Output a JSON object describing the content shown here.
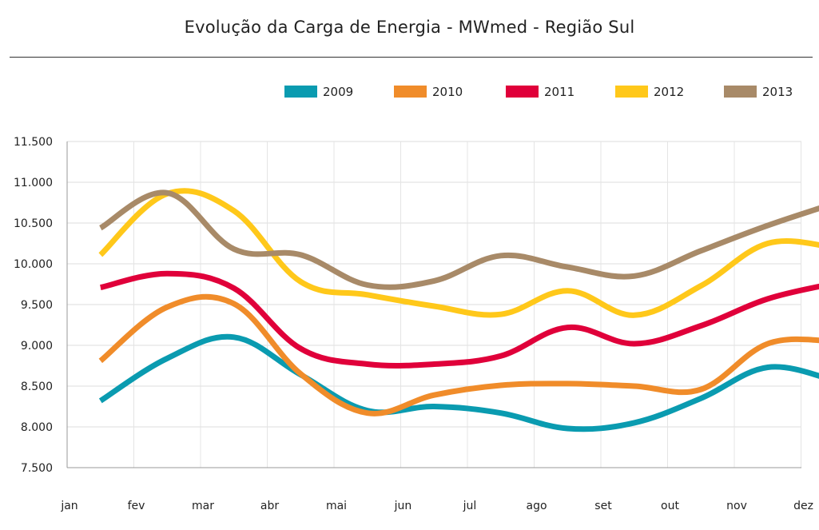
{
  "chart_data": {
    "type": "line",
    "title": "Evolução da Carga de Energia - MWmed - Região Sul",
    "xlabel": "",
    "ylabel": "",
    "categories": [
      "jan",
      "fev",
      "mar",
      "abr",
      "mai",
      "jun",
      "jul",
      "ago",
      "set",
      "out",
      "nov",
      "dez"
    ],
    "y_ticks": [
      "7.500",
      "8.000",
      "8.500",
      "9.000",
      "9.500",
      "10.000",
      "10.500",
      "11.000",
      "11.500"
    ],
    "ylim": [
      7500,
      11500
    ],
    "grid": true,
    "legend_position": "top-right",
    "series": [
      {
        "name": "2009",
        "color": "#0a9bb0",
        "values": [
          8320,
          8840,
          9100,
          8640,
          8200,
          8250,
          8170,
          7980,
          8050,
          8350,
          8730,
          8570
        ]
      },
      {
        "name": "2010",
        "color": "#f08c2a",
        "values": [
          8810,
          9470,
          9510,
          8650,
          8170,
          8390,
          8510,
          8530,
          8500,
          8460,
          9020,
          9050
        ]
      },
      {
        "name": "2011",
        "color": "#e0003a",
        "values": [
          9710,
          9880,
          9700,
          8960,
          8770,
          8770,
          8870,
          9220,
          9020,
          9240,
          9570,
          9760
        ]
      },
      {
        "name": "2012",
        "color": "#ffc81a",
        "values": [
          10110,
          10860,
          10650,
          9780,
          9620,
          9480,
          9380,
          9670,
          9370,
          9730,
          10250,
          10200
        ]
      },
      {
        "name": "2013",
        "color": "#a88a68",
        "values": [
          10440,
          10870,
          10180,
          10110,
          9740,
          9790,
          10100,
          9960,
          9850,
          10160,
          10470,
          10740
        ]
      }
    ]
  }
}
